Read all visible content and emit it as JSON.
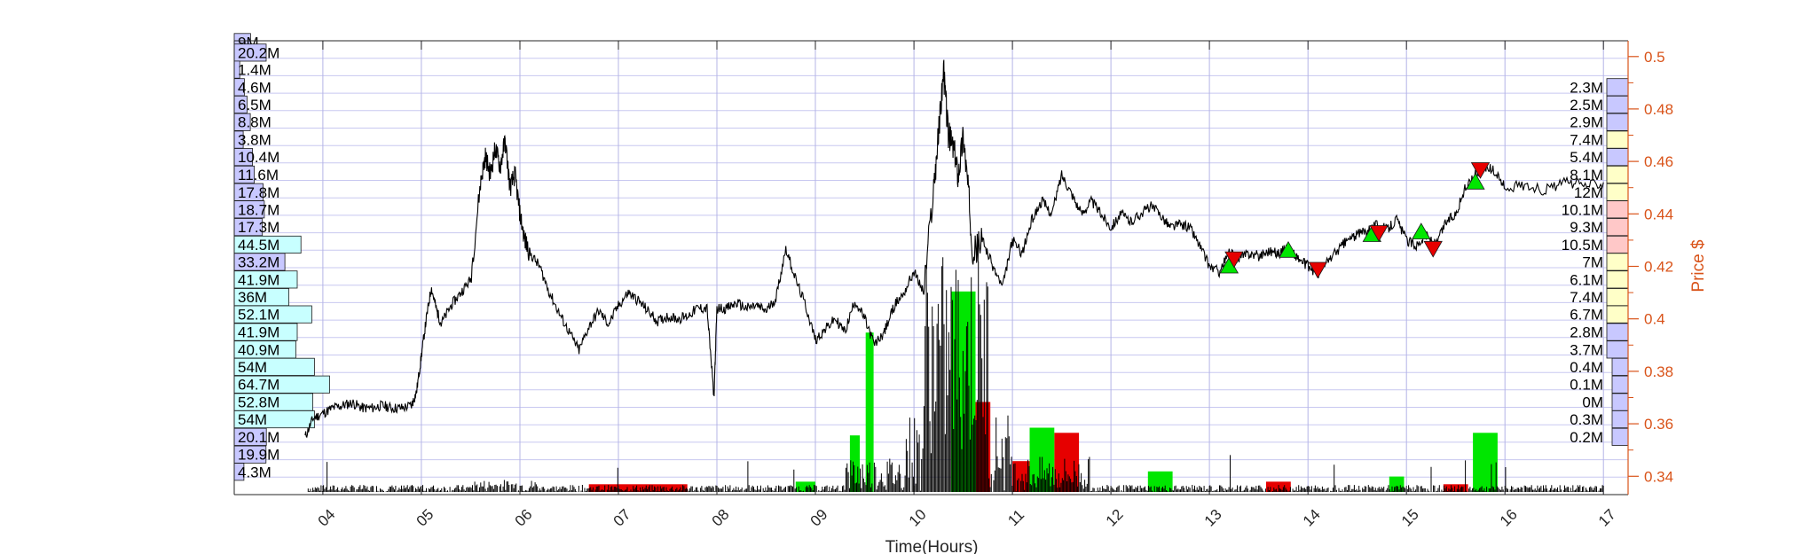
{
  "chart_data": {
    "type": "line",
    "title": "",
    "xlabel": "Time(Hours)",
    "ylabel": "Price $",
    "xlim": [
      3.1,
      17.25
    ],
    "ylim": [
      0.333,
      0.506
    ],
    "x_ticks": [
      "04",
      "05",
      "06",
      "07",
      "08",
      "09",
      "10",
      "11",
      "12",
      "13",
      "14",
      "15",
      "16",
      "17"
    ],
    "y_ticks": [
      "0.34",
      "0.36",
      "0.38",
      "0.4",
      "0.42",
      "0.44",
      "0.46",
      "0.48",
      "0.5"
    ],
    "grid": true,
    "colors": {
      "price_line": "#000000",
      "axis_right": "#d95319",
      "grid_major": "#b4b4e6",
      "grid_minor": "#c8c8f0",
      "volume_buy": "#00e600",
      "volume_sell": "#e60000",
      "profile_blue": "#c8c8ff",
      "profile_cyan": "#c8ffff",
      "profile_yellow": "#ffffc8",
      "profile_green": "#c8ffc8",
      "profile_red": "#ffc8c8",
      "marker_buy": "#00e600",
      "marker_sell": "#e60000"
    },
    "price_series": {
      "name": "",
      "x": [
        3.82,
        3.9,
        4.0,
        4.1,
        4.2,
        4.3,
        4.4,
        4.5,
        4.6,
        4.7,
        4.8,
        4.9,
        4.95,
        5.0,
        5.05,
        5.1,
        5.15,
        5.2,
        5.3,
        5.4,
        5.5,
        5.6,
        5.65,
        5.7,
        5.75,
        5.8,
        5.85,
        5.9,
        5.95,
        6.0,
        6.05,
        6.1,
        6.2,
        6.3,
        6.4,
        6.5,
        6.6,
        6.7,
        6.8,
        6.9,
        7.0,
        7.1,
        7.2,
        7.3,
        7.4,
        7.5,
        7.6,
        7.7,
        7.8,
        7.9,
        7.97,
        8.0,
        8.1,
        8.2,
        8.3,
        8.4,
        8.5,
        8.6,
        8.7,
        8.8,
        8.9,
        9.0,
        9.1,
        9.2,
        9.3,
        9.4,
        9.5,
        9.6,
        9.7,
        9.8,
        9.9,
        10.0,
        10.1,
        10.2,
        10.25,
        10.3,
        10.35,
        10.4,
        10.45,
        10.5,
        10.55,
        10.6,
        10.7,
        10.8,
        10.9,
        11.0,
        11.1,
        11.2,
        11.3,
        11.4,
        11.5,
        11.6,
        11.7,
        11.8,
        11.9,
        12.0,
        12.1,
        12.2,
        12.3,
        12.4,
        12.5,
        12.6,
        12.7,
        12.8,
        12.9,
        13.0,
        13.1,
        13.2,
        13.3,
        13.4,
        13.5,
        13.6,
        13.7,
        13.8,
        13.9,
        14.0,
        14.1,
        14.2,
        14.3,
        14.4,
        14.5,
        14.6,
        14.7,
        14.8,
        14.9,
        15.0,
        15.1,
        15.2,
        15.3,
        15.4,
        15.5,
        15.6,
        15.7,
        15.8,
        15.9,
        16.0,
        16.2,
        16.4,
        16.6,
        16.8,
        17.0
      ],
      "y": [
        0.355,
        0.362,
        0.364,
        0.366,
        0.367,
        0.368,
        0.366,
        0.366,
        0.367,
        0.366,
        0.366,
        0.367,
        0.372,
        0.386,
        0.4,
        0.412,
        0.404,
        0.398,
        0.405,
        0.41,
        0.415,
        0.452,
        0.462,
        0.455,
        0.465,
        0.458,
        0.468,
        0.45,
        0.455,
        0.44,
        0.43,
        0.425,
        0.42,
        0.41,
        0.402,
        0.395,
        0.388,
        0.397,
        0.403,
        0.398,
        0.405,
        0.41,
        0.407,
        0.403,
        0.399,
        0.401,
        0.4,
        0.401,
        0.404,
        0.404,
        0.37,
        0.404,
        0.404,
        0.406,
        0.404,
        0.405,
        0.403,
        0.408,
        0.427,
        0.415,
        0.405,
        0.392,
        0.396,
        0.4,
        0.395,
        0.407,
        0.4,
        0.39,
        0.395,
        0.405,
        0.41,
        0.418,
        0.41,
        0.45,
        0.47,
        0.495,
        0.47,
        0.465,
        0.455,
        0.47,
        0.45,
        0.425,
        0.43,
        0.42,
        0.412,
        0.43,
        0.425,
        0.438,
        0.445,
        0.44,
        0.455,
        0.448,
        0.44,
        0.445,
        0.44,
        0.435,
        0.44,
        0.437,
        0.44,
        0.443,
        0.44,
        0.435,
        0.436,
        0.435,
        0.428,
        0.42,
        0.418,
        0.425,
        0.423,
        0.425,
        0.424,
        0.426,
        0.425,
        0.427,
        0.423,
        0.42,
        0.417,
        0.422,
        0.426,
        0.43,
        0.432,
        0.434,
        0.436,
        0.434,
        0.438,
        0.43,
        0.428,
        0.432,
        0.428,
        0.437,
        0.44,
        0.45,
        0.455,
        0.458,
        0.456,
        0.45,
        0.451,
        0.449,
        0.452,
        0.451,
        0.452
      ]
    },
    "volume_series": {
      "buy": [
        {
          "x": 9.4,
          "w": 0.1,
          "v": 0.22
        },
        {
          "x": 9.55,
          "w": 0.08,
          "v": 0.62
        },
        {
          "x": 10.5,
          "w": 0.25,
          "v": 0.78
        },
        {
          "x": 11.3,
          "w": 0.25,
          "v": 0.25
        },
        {
          "x": 12.5,
          "w": 0.25,
          "v": 0.08
        },
        {
          "x": 14.9,
          "w": 0.15,
          "v": 0.06
        },
        {
          "x": 15.8,
          "w": 0.25,
          "v": 0.23
        },
        {
          "x": 8.9,
          "w": 0.2,
          "v": 0.04
        }
      ],
      "sell": [
        {
          "x": 7.2,
          "w": 1.0,
          "v": 0.03
        },
        {
          "x": 10.65,
          "w": 0.25,
          "v": 0.35
        },
        {
          "x": 11.1,
          "w": 0.2,
          "v": 0.12
        },
        {
          "x": 11.55,
          "w": 0.25,
          "v": 0.23
        },
        {
          "x": 13.7,
          "w": 0.25,
          "v": 0.04
        },
        {
          "x": 15.5,
          "w": 0.25,
          "v": 0.03
        }
      ]
    },
    "trade_markers": {
      "buy": [
        {
          "x": 13.2,
          "y": 0.42
        },
        {
          "x": 13.8,
          "y": 0.426
        },
        {
          "x": 14.65,
          "y": 0.432
        },
        {
          "x": 15.15,
          "y": 0.433
        },
        {
          "x": 15.7,
          "y": 0.452
        }
      ],
      "sell": [
        {
          "x": 13.25,
          "y": 0.423
        },
        {
          "x": 14.1,
          "y": 0.419
        },
        {
          "x": 14.72,
          "y": 0.433
        },
        {
          "x": 15.27,
          "y": 0.427
        },
        {
          "x": 15.75,
          "y": 0.457
        }
      ]
    },
    "left_volume_profile": [
      {
        "label": "9M",
        "price": 0.5055,
        "v": 0.09
      },
      {
        "label": "20.2M",
        "price": 0.5015,
        "v": 0.2
      },
      {
        "label": "1.4M",
        "price": 0.495,
        "v": 0.014
      },
      {
        "label": "4.6M",
        "price": 0.4883,
        "v": 0.046
      },
      {
        "label": "6.5M",
        "price": 0.4817,
        "v": 0.065
      },
      {
        "label": "8.8M",
        "price": 0.475,
        "v": 0.088
      },
      {
        "label": "3.8M",
        "price": 0.4683,
        "v": 0.038
      },
      {
        "label": "10.4M",
        "price": 0.4617,
        "v": 0.104
      },
      {
        "label": "11.6M",
        "price": 0.455,
        "v": 0.116
      },
      {
        "label": "17.8M",
        "price": 0.4483,
        "v": 0.178
      },
      {
        "label": "18.7M",
        "price": 0.4417,
        "v": 0.187
      },
      {
        "label": "17.3M",
        "price": 0.435,
        "v": 0.173
      },
      {
        "label": "44.5M",
        "price": 0.4283,
        "v": 0.445
      },
      {
        "label": "33.2M",
        "price": 0.4217,
        "v": 0.332
      },
      {
        "label": "41.9M",
        "price": 0.415,
        "v": 0.419
      },
      {
        "label": "36M",
        "price": 0.4083,
        "v": 0.36
      },
      {
        "label": "52.1M",
        "price": 0.4017,
        "v": 0.521
      },
      {
        "label": "41.9M",
        "price": 0.395,
        "v": 0.419
      },
      {
        "label": "40.9M",
        "price": 0.3883,
        "v": 0.409
      },
      {
        "label": "54M",
        "price": 0.3817,
        "v": 0.54
      },
      {
        "label": "64.7M",
        "price": 0.375,
        "v": 0.647
      },
      {
        "label": "52.8M",
        "price": 0.3683,
        "v": 0.528
      },
      {
        "label": "54M",
        "price": 0.3617,
        "v": 0.54
      },
      {
        "label": "20.1M",
        "price": 0.355,
        "v": 0.201
      },
      {
        "label": "19.9M",
        "price": 0.3483,
        "v": 0.199
      },
      {
        "label": "4.3M",
        "price": 0.3417,
        "v": 0.043
      }
    ],
    "right_volume_profile": [
      {
        "label": "2.3M",
        "price": 0.4883,
        "v": 0.023
      },
      {
        "label": "2.5M",
        "price": 0.4817,
        "v": 0.025
      },
      {
        "label": "2.9M",
        "price": 0.475,
        "v": 0.029
      },
      {
        "label": "7.4M",
        "price": 0.4683,
        "v": 0.074
      },
      {
        "label": "5.4M",
        "price": 0.4617,
        "v": 0.054
      },
      {
        "label": "8.1M",
        "price": 0.455,
        "v": 0.081
      },
      {
        "label": "12M",
        "price": 0.4483,
        "v": 0.12
      },
      {
        "label": "10.1M",
        "price": 0.4417,
        "v": 0.101
      },
      {
        "label": "9.3M",
        "price": 0.435,
        "v": 0.093
      },
      {
        "label": "10.5M",
        "price": 0.4283,
        "v": 0.105
      },
      {
        "label": "7M",
        "price": 0.4217,
        "v": 0.07
      },
      {
        "label": "6.1M",
        "price": 0.415,
        "v": 0.061
      },
      {
        "label": "7.4M",
        "price": 0.4083,
        "v": 0.074
      },
      {
        "label": "6.7M",
        "price": 0.4017,
        "v": 0.067
      },
      {
        "label": "2.8M",
        "price": 0.395,
        "v": 0.028
      },
      {
        "label": "3.7M",
        "price": 0.3883,
        "v": 0.037
      },
      {
        "label": "0.4M",
        "price": 0.3817,
        "v": 0.004
      },
      {
        "label": "0.1M",
        "price": 0.375,
        "v": 0.001
      },
      {
        "label": "0M",
        "price": 0.3683,
        "v": 0
      },
      {
        "label": "0.3M",
        "price": 0.3617,
        "v": 0.003
      },
      {
        "label": "0.2M",
        "price": 0.355,
        "v": 0.002
      }
    ]
  }
}
